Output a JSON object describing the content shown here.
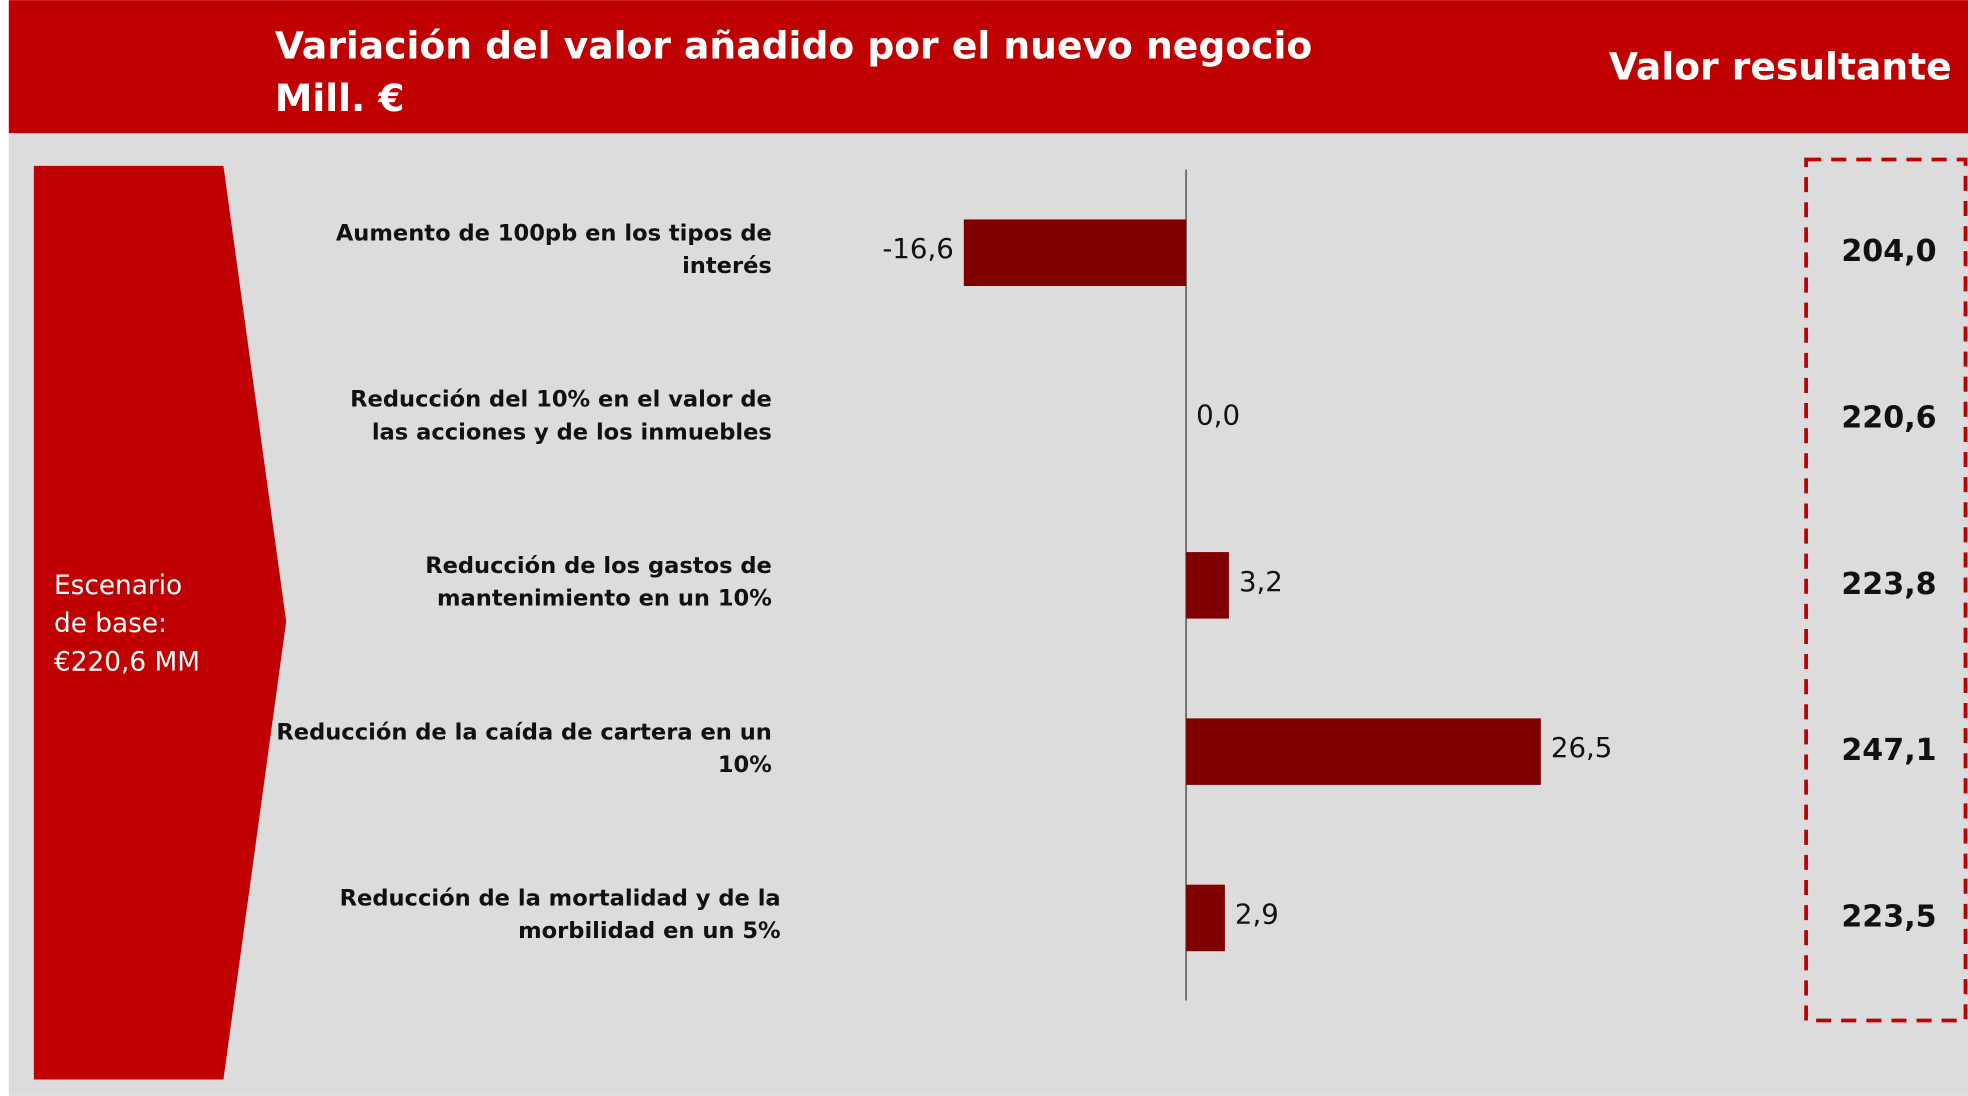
{
  "chart_data": {
    "type": "bar",
    "orientation": "horizontal",
    "title": "Variación del valor añadido por el nuevo negocio",
    "subtitle": "Mill. €",
    "annotation": [
      "Escenario",
      "de base:",
      "€220,6 MM"
    ],
    "categories": [
      [
        "Aumento de 100pb en los tipos de",
        "interés"
      ],
      [
        "Reducción del 10% en el valor de",
        "las acciones y de los inmuebles"
      ],
      [
        "Reducción de los gastos de",
        "mantenimiento en un 10%"
      ],
      [
        "Reducción de la caída de cartera en un",
        "10%"
      ],
      [
        "Reducción de la mortalidad y de la",
        "morbilidad en un 5%"
      ]
    ],
    "values": [
      -16.6,
      0.0,
      3.2,
      26.5,
      2.9
    ],
    "value_labels": [
      "-16,6",
      "0,0",
      "3,2",
      "26,5",
      "2,9"
    ],
    "color": "#800000",
    "xlim": [
      -30,
      42
    ],
    "results": {
      "title": "Valor resultante",
      "values": [
        204.0,
        220.6,
        223.8,
        247.1,
        223.5
      ],
      "value_labels": [
        "204,0",
        "220,6",
        "223,8",
        "247,1",
        "223,5"
      ]
    }
  }
}
